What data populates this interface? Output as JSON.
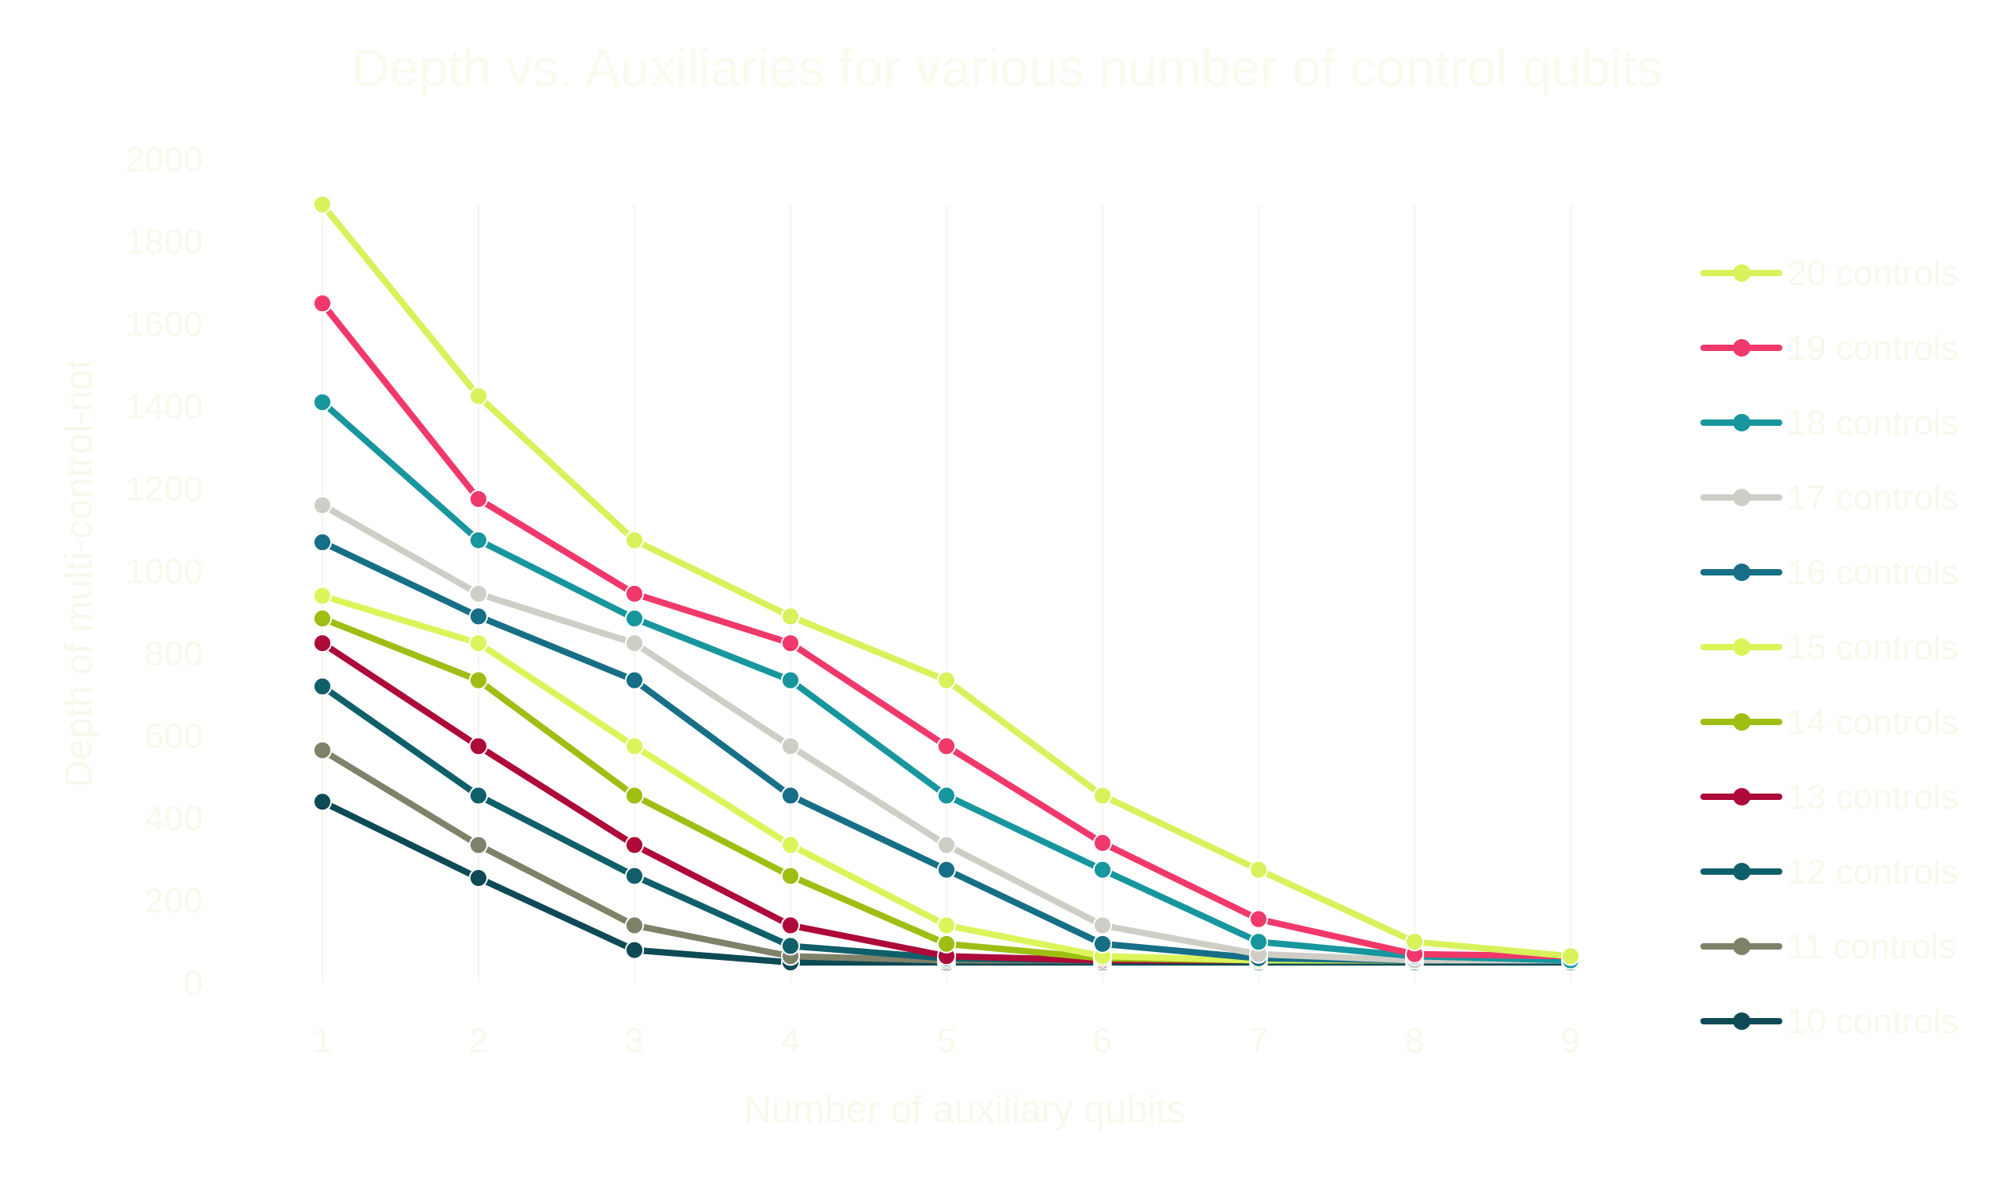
{
  "chart_data": {
    "type": "line",
    "title": "Depth vs. Auxiliaries for various number of control qubits",
    "xlabel": "Number of auxiliary qubits",
    "ylabel": "Depth of multi-control-not",
    "x": [
      1,
      2,
      3,
      4,
      5,
      6,
      7,
      8,
      9
    ],
    "ylim": [
      0,
      2000
    ],
    "yticks": [
      0,
      200,
      400,
      600,
      800,
      1000,
      1200,
      1400,
      1600,
      1800,
      2000
    ],
    "grid": false,
    "legend_position": "right",
    "series": [
      {
        "name": "20 controls",
        "color": "#d7f25a",
        "values": [
          1890,
          1425,
          1075,
          890,
          735,
          455,
          275,
          100,
          65
        ]
      },
      {
        "name": "19 controls",
        "color": "#f0386b",
        "values": [
          1650,
          1175,
          945,
          825,
          575,
          340,
          155,
          70,
          65
        ]
      },
      {
        "name": "18 controls",
        "color": "#17969e",
        "values": [
          1410,
          1075,
          885,
          735,
          455,
          275,
          100,
          65,
          55
        ]
      },
      {
        "name": "17 controls",
        "color": "#cfcec6",
        "values": [
          1160,
          945,
          825,
          575,
          335,
          140,
          70,
          55,
          55
        ]
      },
      {
        "name": "16 controls",
        "color": "#166f86",
        "values": [
          1070,
          890,
          735,
          455,
          275,
          95,
          60,
          55,
          55
        ]
      },
      {
        "name": "15 controls",
        "color": "#dcf45a",
        "values": [
          940,
          825,
          575,
          335,
          140,
          65,
          55,
          55,
          55
        ]
      },
      {
        "name": "14 controls",
        "color": "#9ebe13",
        "values": [
          885,
          735,
          455,
          260,
          95,
          60,
          55,
          55,
          55
        ]
      },
      {
        "name": "13 controls",
        "color": "#ad0a39",
        "values": [
          825,
          575,
          335,
          140,
          65,
          55,
          55,
          55,
          55
        ]
      },
      {
        "name": "12 controls",
        "color": "#0f5f6a",
        "values": [
          720,
          455,
          260,
          90,
          60,
          55,
          55,
          55,
          55
        ]
      },
      {
        "name": "11 controls",
        "color": "#7f8169",
        "values": [
          565,
          335,
          140,
          65,
          55,
          55,
          55,
          55,
          55
        ]
      },
      {
        "name": "10 controls",
        "color": "#0d4a55",
        "values": [
          440,
          255,
          80,
          50,
          50,
          50,
          50,
          50,
          50
        ]
      }
    ]
  }
}
